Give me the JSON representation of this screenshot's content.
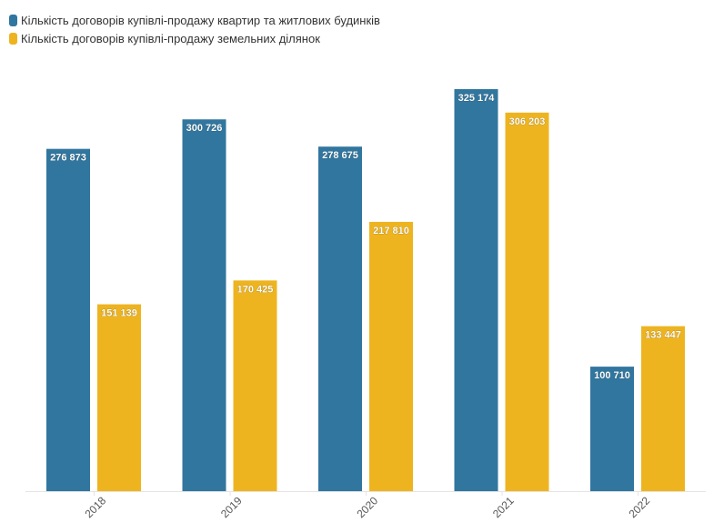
{
  "chart_data": {
    "type": "bar",
    "title": "",
    "xlabel": "",
    "ylabel": "",
    "categories": [
      "2018",
      "2019",
      "2020",
      "2021",
      "2022"
    ],
    "series": [
      {
        "name": "Кількість договорів купівлі-продажу квартир та житлових будинків",
        "color": "#31769f",
        "values": [
          276873,
          300726,
          278675,
          325174,
          100710
        ],
        "labels": [
          "276 873",
          "300 726",
          "278 675",
          "325 174",
          "100 710"
        ]
      },
      {
        "name": "Кількість договорів купівлі-продажу земельних ділянок",
        "color": "#eeb420",
        "values": [
          151139,
          170425,
          217810,
          306203,
          133447
        ],
        "labels": [
          "151 139",
          "170 425",
          "217 810",
          "306 203",
          "133 447"
        ]
      }
    ],
    "ylim": [
      0,
      325174
    ],
    "grid": false,
    "legend": "top-left"
  }
}
